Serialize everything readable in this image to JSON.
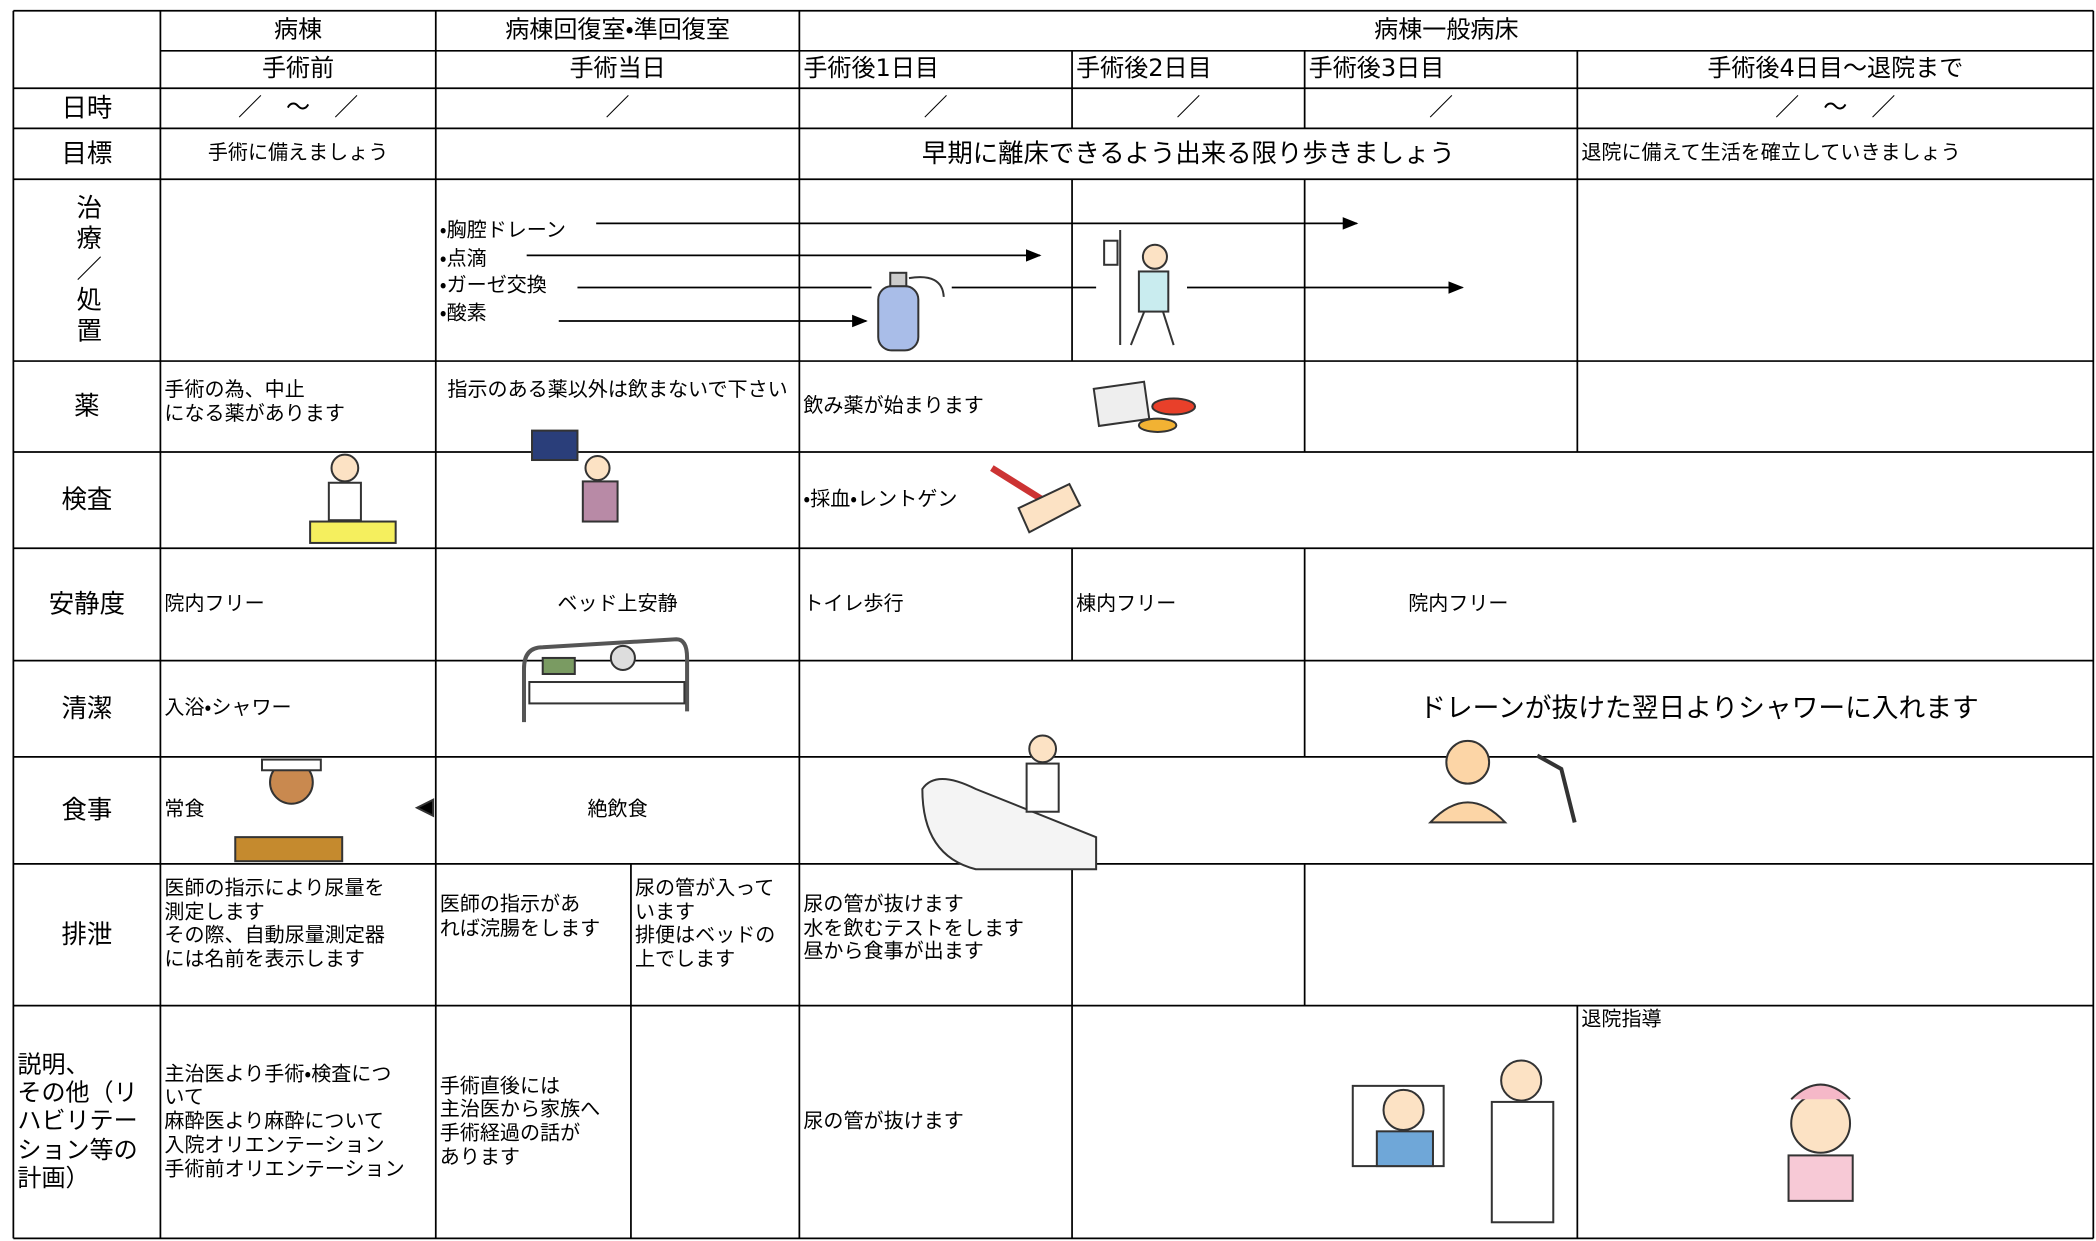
{
  "header": {
    "ward_row": [
      "病棟",
      "病棟回復室・準回復室",
      "病棟一般病床"
    ],
    "day_row": [
      "手術前",
      "手術当日",
      "手術後1日目",
      "手術後2日目",
      "手術後3日目",
      "手術後4日目～退院まで"
    ]
  },
  "rows": [
    {
      "label": "日時",
      "cells": [
        "／　～　／",
        "／",
        "／",
        "／",
        "／",
        "／　～　／"
      ]
    },
    {
      "label": "目標",
      "cells": [
        "手術に備えましょう",
        "早期に離床できるよう出来る限り歩きましょう",
        "退院に備えて生活を確立していきましょう"
      ]
    },
    {
      "label": "治療／処置",
      "cells": [
        "・胸腔ドレーン",
        "・点滴",
        "・ガーゼ交換",
        "・酸素"
      ]
    },
    {
      "label": "薬",
      "cells": [
        "手術の為、中止\nになる薬があります",
        "指示のある薬以外は飲まないで下さい",
        "飲み薬が始まります"
      ]
    },
    {
      "label": "検査",
      "cells": [
        "・採血・レントゲン"
      ]
    },
    {
      "label": "安静度",
      "cells": [
        "院内フリー",
        "ベッド上安静",
        "トイレ歩行",
        "棟内フリー",
        "院内フリー"
      ]
    },
    {
      "label": "清潔",
      "cells": [
        "入浴・シャワー",
        "ドレーンが抜けた翌日よりシャワーに入れます"
      ]
    },
    {
      "label": "食事",
      "cells": [
        "常食",
        "絶飲食"
      ]
    },
    {
      "label": "排泄",
      "cells": [
        "医師の指示により尿量を\n測定します\nその際、自動尿量測定器\nには名前を表示します",
        "医師の指示があ\nれば浣腸をします",
        "尿の管が入って\nいます\n排便はベッドの\n上でします",
        "尿の管が抜けます\n水を飲むテストをします\n昼から食事が出ます"
      ]
    },
    {
      "label": "説明、\nその他（リ\nハビリテー\nション等の\n計画）",
      "cells": [
        "主治医より手術・検査につ\nいて\n麻酔医より麻酔について\n入院オリエンテーション\n手術前オリエンテーション",
        "手術直後には\n主治医から家族へ\n手術経過の話が\nあります",
        "尿の管が抜けます",
        "退院指導"
      ]
    }
  ]
}
